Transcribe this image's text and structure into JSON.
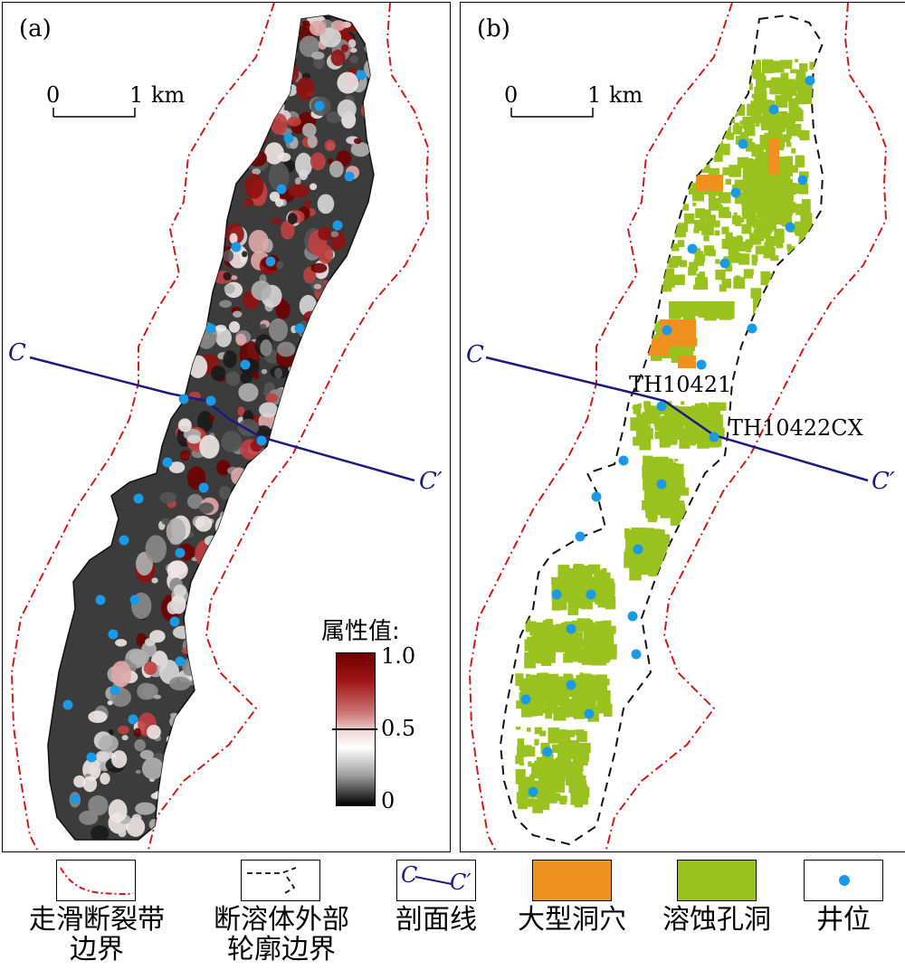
{
  "panel_a": {
    "label": "(a)",
    "scale": {
      "zero": "0",
      "one": "1",
      "unit": "km"
    },
    "section": {
      "start": "C",
      "end": "C′"
    },
    "colorbar": {
      "title": "属性值:",
      "ticks": [
        "1.0",
        "0.5",
        "0"
      ]
    }
  },
  "panel_b": {
    "label": "(b)",
    "scale": {
      "zero": "0",
      "one": "1",
      "unit": "km"
    },
    "section": {
      "start": "C",
      "end": "C′"
    },
    "wells": [
      "TH10421",
      "TH10422CX"
    ]
  },
  "legend": {
    "items": [
      {
        "label": "走滑断裂带\n边界",
        "icon": "dash-dot-line"
      },
      {
        "label": "断溶体外部\n轮廓边界",
        "icon": "dashed-line"
      },
      {
        "label": "剖面线",
        "icon": "section-line",
        "symbol_start": "C",
        "symbol_end": "C′"
      },
      {
        "label": "大型洞穴",
        "icon": "swatch"
      },
      {
        "label": "溶蚀孔洞",
        "icon": "swatch"
      },
      {
        "label": "井位",
        "icon": "dot"
      }
    ]
  },
  "colors": {
    "fault_boundary": "#cc1a1a",
    "section_line": "#1a1a80",
    "large_cave": "#f0901e",
    "vug": "#99c21e",
    "well": "#1a9ae6"
  }
}
